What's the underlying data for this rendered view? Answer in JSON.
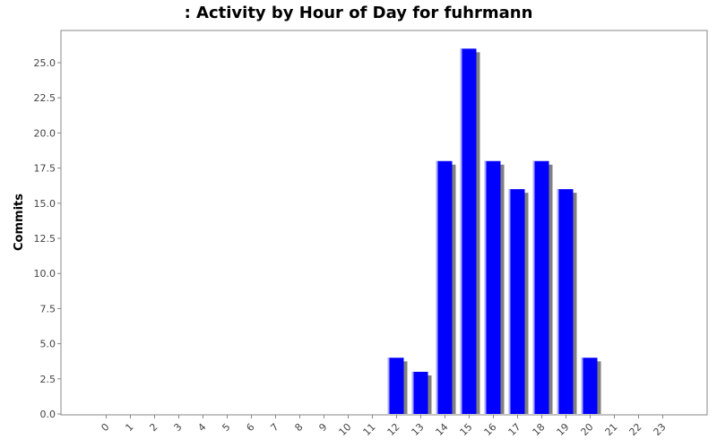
{
  "chart_data": {
    "type": "bar",
    "title": ": Activity by Hour of Day for fuhrmann",
    "xlabel": "",
    "ylabel": "Commits",
    "categories": [
      "0",
      "1",
      "2",
      "3",
      "4",
      "5",
      "6",
      "7",
      "8",
      "9",
      "10",
      "11",
      "12",
      "13",
      "14",
      "15",
      "16",
      "17",
      "18",
      "19",
      "20",
      "21",
      "22",
      "23"
    ],
    "values": [
      0,
      0,
      0,
      0,
      0,
      0,
      0,
      0,
      0,
      0,
      0,
      0,
      4,
      3,
      18,
      26,
      18,
      16,
      18,
      16,
      4,
      0,
      0,
      0
    ],
    "ylim": [
      0,
      27
    ],
    "yticks": [
      "0.0",
      "2.5",
      "5.0",
      "7.5",
      "10.0",
      "12.5",
      "15.0",
      "17.5",
      "20.0",
      "22.5",
      "25.0"
    ],
    "grid": false,
    "legend": "none",
    "colors": {
      "bar": "#0000ff",
      "bar_shadow": "#808080",
      "bar_highlight": "#aaaaff",
      "axis": "#888888"
    }
  }
}
